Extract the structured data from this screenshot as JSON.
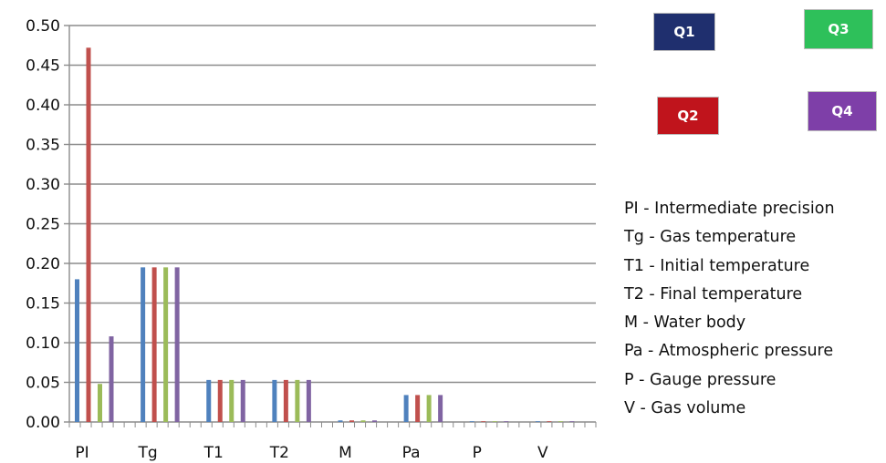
{
  "chart_data": {
    "type": "bar",
    "title": "",
    "xlabel": "",
    "ylabel": "",
    "ylim": [
      0,
      0.5
    ],
    "yticks": [
      "0.00",
      "0.05",
      "0.10",
      "0.15",
      "0.20",
      "0.25",
      "0.30",
      "0.35",
      "0.40",
      "0.45",
      "0.50"
    ],
    "grid": true,
    "categories": [
      "PI",
      "Tg",
      "T1",
      "T2",
      "M",
      "Pa",
      "P",
      "V"
    ],
    "series": [
      {
        "name": "Q1",
        "color": "#4f81bd",
        "values": [
          0.18,
          0.195,
          0.053,
          0.053,
          0.002,
          0.034,
          0.0,
          0.0
        ]
      },
      {
        "name": "Q2",
        "color": "#c0504d",
        "values": [
          0.472,
          0.195,
          0.053,
          0.053,
          0.002,
          0.034,
          0.0,
          0.0
        ]
      },
      {
        "name": "Q3",
        "color": "#9bbb59",
        "values": [
          0.048,
          0.195,
          0.053,
          0.053,
          0.002,
          0.034,
          0.0,
          0.0
        ]
      },
      {
        "name": "Q4",
        "color": "#8064a2",
        "values": [
          0.108,
          0.195,
          0.053,
          0.053,
          0.002,
          0.034,
          0.0,
          0.0
        ]
      }
    ]
  },
  "legend": [
    {
      "label": "Q1",
      "color": "#1f2f6e"
    },
    {
      "label": "Q2",
      "color": "#c0141c"
    },
    {
      "label": "Q3",
      "color": "#2ec05a"
    },
    {
      "label": "Q4",
      "color": "#7e3fa8"
    }
  ],
  "abbreviations": [
    "PI - Intermediate precision",
    "Tg - Gas temperature",
    "T1 - Initial temperature",
    "T2 - Final temperature",
    "M - Water body",
    "Pa - Atmospheric pressure",
    "P - Gauge pressure",
    "V - Gas volume"
  ]
}
